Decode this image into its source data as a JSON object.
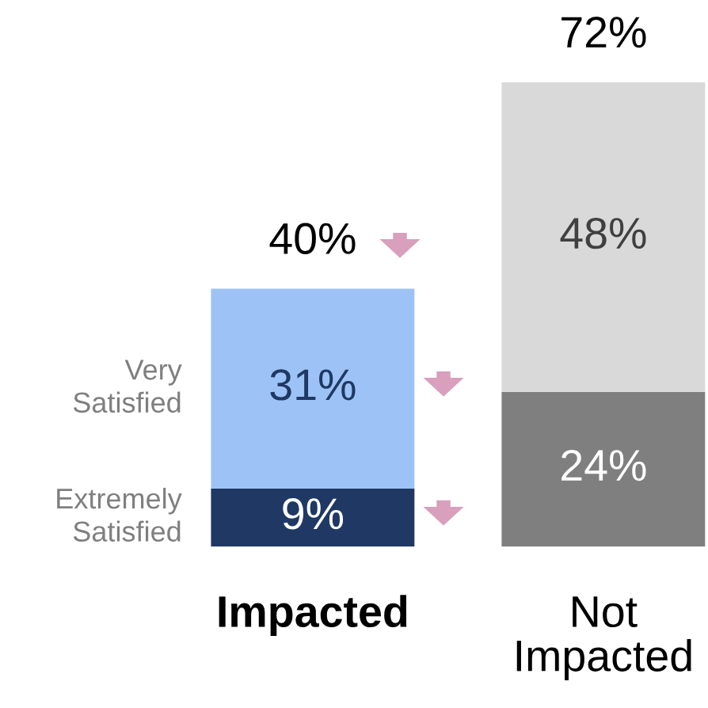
{
  "chart_data": {
    "type": "bar",
    "stacked": true,
    "categories": [
      "Impacted",
      "Not Impacted"
    ],
    "series": [
      {
        "name": "Extremely Satisfied",
        "colors": [
          "#1f3864",
          "#7f7f7f"
        ],
        "values": [
          9,
          24
        ],
        "value_labels": [
          "9%",
          "24%"
        ]
      },
      {
        "name": "Very Satisfied",
        "colors": [
          "#9dc3f6",
          "#d9d9d9"
        ],
        "values": [
          31,
          48
        ],
        "value_labels": [
          "31%",
          "48%"
        ]
      }
    ],
    "totals": [
      "40%",
      "72%"
    ]
  }
}
